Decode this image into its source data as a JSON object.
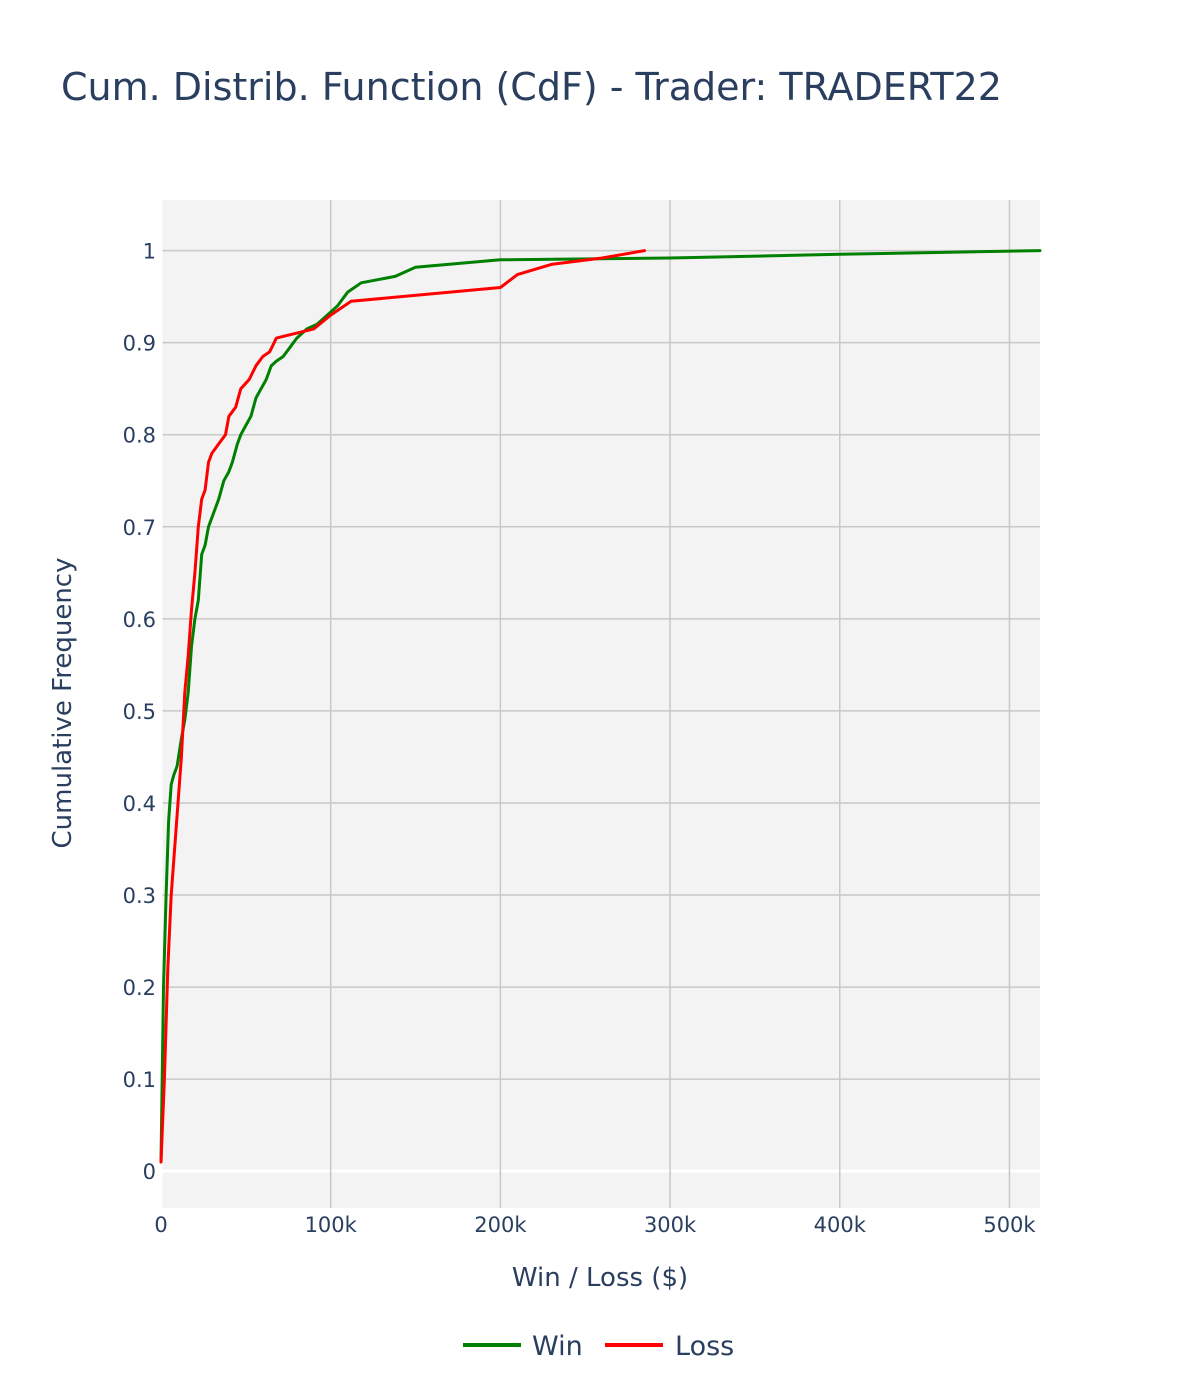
{
  "chart_data": {
    "type": "line",
    "title": "Cum. Distrib. Function (CdF) - Trader: TRADERT22",
    "xlabel": "Win / Loss ($)",
    "ylabel": "Cumulative Frequency",
    "xlim": [
      0,
      518000
    ],
    "ylim": [
      -0.04,
      1.055
    ],
    "xticks": [
      0,
      100000,
      200000,
      300000,
      400000,
      500000
    ],
    "xtick_labels": [
      "0",
      "100k",
      "200k",
      "300k",
      "400k",
      "500k"
    ],
    "yticks": [
      0,
      0.1,
      0.2,
      0.3,
      0.4,
      0.5,
      0.6,
      0.7,
      0.8,
      0.9,
      1
    ],
    "ytick_labels": [
      "0",
      "0.1",
      "0.2",
      "0.3",
      "0.4",
      "0.5",
      "0.6",
      "0.7",
      "0.8",
      "0.9",
      "1"
    ],
    "grid": true,
    "legend_position": "bottom-center",
    "plot_background": "#f3f3f3",
    "grid_color": "#c8c8c8",
    "series": [
      {
        "name": "Win",
        "color": "#008000",
        "x": [
          0,
          1500,
          3000,
          4500,
          6000,
          7500,
          9500,
          12000,
          14000,
          16000,
          18000,
          20000,
          22000,
          24000,
          26000,
          28000,
          30000,
          32000,
          34000,
          37000,
          40000,
          42000,
          45000,
          47000,
          50000,
          53000,
          56000,
          59000,
          62000,
          65000,
          68000,
          72000,
          76000,
          80000,
          86000,
          92000,
          98000,
          104000,
          108000,
          110000,
          118000,
          138000,
          150000,
          200000,
          300000,
          400000,
          518000
        ],
        "y": [
          0.01,
          0.2,
          0.3,
          0.38,
          0.42,
          0.43,
          0.44,
          0.47,
          0.49,
          0.52,
          0.57,
          0.6,
          0.62,
          0.67,
          0.68,
          0.7,
          0.71,
          0.72,
          0.73,
          0.75,
          0.76,
          0.77,
          0.79,
          0.8,
          0.81,
          0.82,
          0.84,
          0.85,
          0.86,
          0.875,
          0.88,
          0.885,
          0.895,
          0.905,
          0.915,
          0.92,
          0.93,
          0.94,
          0.95,
          0.955,
          0.965,
          0.972,
          0.982,
          0.99,
          0.992,
          0.996,
          1.0
        ]
      },
      {
        "name": "Loss",
        "color": "#ff0000",
        "x": [
          0,
          2000,
          4000,
          6000,
          8000,
          10000,
          12000,
          14000,
          16000,
          18000,
          20000,
          22000,
          24000,
          26000,
          28000,
          30000,
          34000,
          38000,
          40000,
          44000,
          47000,
          52000,
          56000,
          60000,
          64000,
          68000,
          90000,
          100000,
          112000,
          200000,
          210000,
          230000,
          260000,
          285000
        ],
        "y": [
          0.01,
          0.1,
          0.22,
          0.3,
          0.35,
          0.4,
          0.45,
          0.52,
          0.56,
          0.61,
          0.65,
          0.7,
          0.73,
          0.74,
          0.77,
          0.78,
          0.79,
          0.8,
          0.82,
          0.83,
          0.85,
          0.86,
          0.875,
          0.885,
          0.89,
          0.905,
          0.915,
          0.93,
          0.945,
          0.96,
          0.974,
          0.985,
          0.992,
          1.0
        ]
      }
    ]
  }
}
